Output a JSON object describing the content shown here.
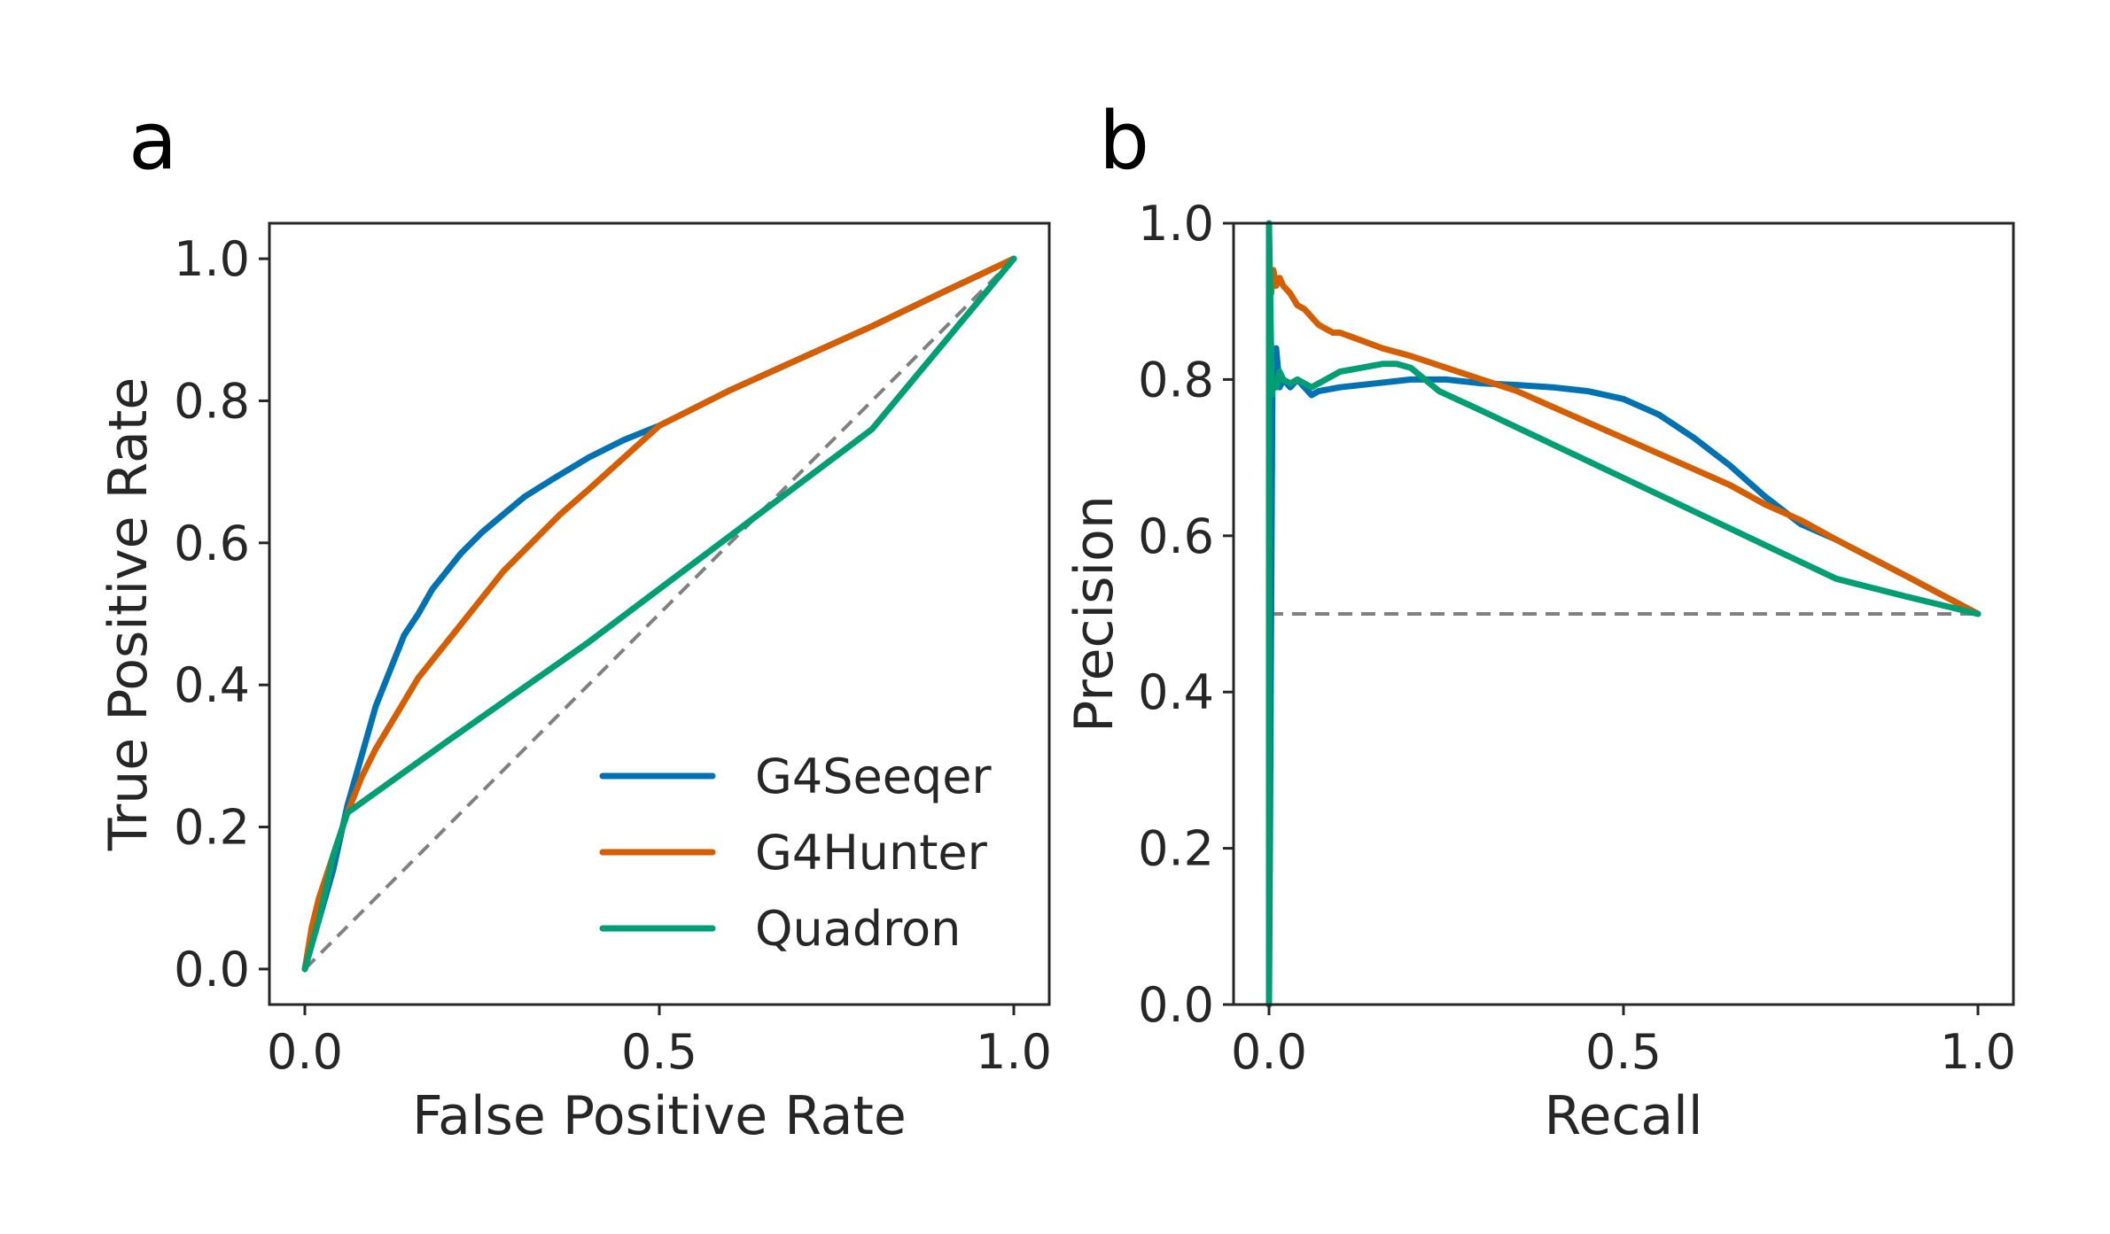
{
  "chart_data": [
    {
      "type": "line",
      "panel_label": "a",
      "xlabel": "False Positive Rate",
      "ylabel": "True Positive Rate",
      "xlim": [
        -0.05,
        1.05
      ],
      "ylim": [
        -0.05,
        1.05
      ],
      "xticks": [
        0.0,
        0.5,
        1.0
      ],
      "xtick_labels": [
        "0.0",
        "0.5",
        "1.0"
      ],
      "yticks": [
        0.0,
        0.2,
        0.4,
        0.6,
        0.8,
        1.0
      ],
      "ytick_labels": [
        "0.0",
        "0.2",
        "0.4",
        "0.6",
        "0.8",
        "1.0"
      ],
      "grid": false,
      "legend_position": "lower-right",
      "reference_line": {
        "x": [
          0,
          1
        ],
        "y": [
          0,
          1
        ],
        "color": "#808080",
        "style": "dashed"
      },
      "series": [
        {
          "name": "G4Seeqer",
          "color": "#0072b2",
          "x": [
            0.0,
            0.01,
            0.02,
            0.04,
            0.06,
            0.08,
            0.1,
            0.12,
            0.14,
            0.16,
            0.18,
            0.2,
            0.22,
            0.25,
            0.28,
            0.31,
            0.35,
            0.4,
            0.45,
            0.5,
            0.55,
            0.6,
            0.7,
            0.8,
            0.9,
            1.0
          ],
          "y": [
            0.0,
            0.04,
            0.07,
            0.14,
            0.23,
            0.3,
            0.37,
            0.42,
            0.47,
            0.5,
            0.535,
            0.56,
            0.585,
            0.615,
            0.64,
            0.665,
            0.69,
            0.72,
            0.745,
            0.765,
            0.79,
            0.815,
            0.86,
            0.905,
            0.953,
            1.0
          ]
        },
        {
          "name": "G4Hunter",
          "color": "#d55e00",
          "x": [
            0.0,
            0.01,
            0.02,
            0.04,
            0.06,
            0.08,
            0.1,
            0.13,
            0.16,
            0.2,
            0.24,
            0.28,
            0.32,
            0.36,
            0.4,
            0.45,
            0.5,
            0.55,
            0.6,
            0.7,
            0.8,
            0.9,
            1.0
          ],
          "y": [
            0.0,
            0.06,
            0.1,
            0.16,
            0.22,
            0.27,
            0.31,
            0.36,
            0.41,
            0.46,
            0.51,
            0.56,
            0.6,
            0.64,
            0.675,
            0.72,
            0.765,
            0.79,
            0.815,
            0.86,
            0.905,
            0.953,
            1.0
          ]
        },
        {
          "name": "Quadron",
          "color": "#009e73",
          "x": [
            0.0,
            0.02,
            0.04,
            0.06,
            0.2,
            0.4,
            0.6,
            0.8,
            1.0
          ],
          "y": [
            0.0,
            0.07,
            0.16,
            0.22,
            0.32,
            0.46,
            0.61,
            0.76,
            1.0
          ]
        }
      ]
    },
    {
      "type": "line",
      "panel_label": "b",
      "xlabel": "Recall",
      "ylabel": "Precision",
      "xlim": [
        -0.05,
        1.05
      ],
      "ylim": [
        0.0,
        1.0
      ],
      "xticks": [
        0.0,
        0.5,
        1.0
      ],
      "xtick_labels": [
        "0.0",
        "0.5",
        "1.0"
      ],
      "yticks": [
        0.0,
        0.2,
        0.4,
        0.6,
        0.8,
        1.0
      ],
      "ytick_labels": [
        "0.0",
        "0.2",
        "0.4",
        "0.6",
        "0.8",
        "1.0"
      ],
      "grid": false,
      "reference_line": {
        "x": [
          0,
          1
        ],
        "y": [
          0.5,
          0.5
        ],
        "color": "#808080",
        "style": "dashed"
      },
      "series": [
        {
          "name": "G4Seeqer",
          "color": "#0072b2",
          "x": [
            0.0,
            0.003,
            0.005,
            0.008,
            0.01,
            0.015,
            0.02,
            0.03,
            0.04,
            0.05,
            0.06,
            0.07,
            0.1,
            0.15,
            0.2,
            0.25,
            0.3,
            0.35,
            0.4,
            0.45,
            0.5,
            0.55,
            0.6,
            0.65,
            0.7,
            0.75,
            0.8,
            0.9,
            1.0
          ],
          "y": [
            0.0,
            0.5,
            0.83,
            0.79,
            0.84,
            0.79,
            0.8,
            0.79,
            0.8,
            0.79,
            0.78,
            0.785,
            0.79,
            0.795,
            0.8,
            0.8,
            0.795,
            0.793,
            0.79,
            0.785,
            0.775,
            0.755,
            0.725,
            0.69,
            0.65,
            0.615,
            0.595,
            0.548,
            0.5
          ]
        },
        {
          "name": "G4Hunter",
          "color": "#d55e00",
          "x": [
            0.003,
            0.006,
            0.01,
            0.015,
            0.02,
            0.03,
            0.04,
            0.05,
            0.07,
            0.09,
            0.1,
            0.13,
            0.16,
            0.2,
            0.25,
            0.3,
            0.35,
            0.4,
            0.45,
            0.5,
            0.55,
            0.6,
            0.65,
            0.7,
            0.75,
            0.8,
            0.9,
            1.0
          ],
          "y": [
            0.91,
            0.94,
            0.92,
            0.93,
            0.92,
            0.91,
            0.895,
            0.89,
            0.87,
            0.86,
            0.86,
            0.85,
            0.84,
            0.83,
            0.815,
            0.8,
            0.785,
            0.765,
            0.745,
            0.725,
            0.705,
            0.685,
            0.665,
            0.64,
            0.62,
            0.595,
            0.548,
            0.5
          ]
        },
        {
          "name": "Quadron",
          "color": "#009e73",
          "x": [
            0.0,
            0.0,
            0.004,
            0.006,
            0.01,
            0.015,
            0.02,
            0.03,
            0.04,
            0.06,
            0.08,
            0.1,
            0.13,
            0.16,
            0.18,
            0.2,
            0.22,
            0.24,
            0.3,
            0.4,
            0.5,
            0.6,
            0.7,
            0.8,
            0.9,
            1.0
          ],
          "y": [
            0.0,
            1.0,
            0.78,
            0.8,
            0.79,
            0.81,
            0.8,
            0.795,
            0.8,
            0.79,
            0.8,
            0.81,
            0.815,
            0.82,
            0.82,
            0.815,
            0.8,
            0.785,
            0.76,
            0.717,
            0.674,
            0.631,
            0.588,
            0.545,
            0.522,
            0.5
          ]
        }
      ]
    }
  ]
}
